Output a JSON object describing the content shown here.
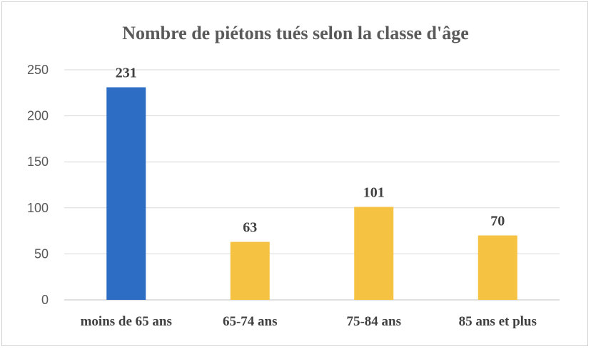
{
  "chart_data": {
    "type": "bar",
    "title": "Nombre de piétons tués selon la classe d'âge",
    "categories": [
      "moins de 65 ans",
      "65-74 ans",
      "75-84 ans",
      "85 ans et plus"
    ],
    "values": [
      231,
      63,
      101,
      70
    ],
    "data_labels": [
      "231",
      "63",
      "101",
      "70"
    ],
    "bar_colors": [
      "#2e6dc4",
      "#f5c242",
      "#f5c242",
      "#f5c242"
    ],
    "ylim": [
      0,
      250
    ],
    "yticks": [
      0,
      50,
      100,
      150,
      200,
      250
    ],
    "ytick_labels": [
      "0",
      "50",
      "100",
      "150",
      "200",
      "250"
    ],
    "grid": true,
    "legend": "none"
  }
}
